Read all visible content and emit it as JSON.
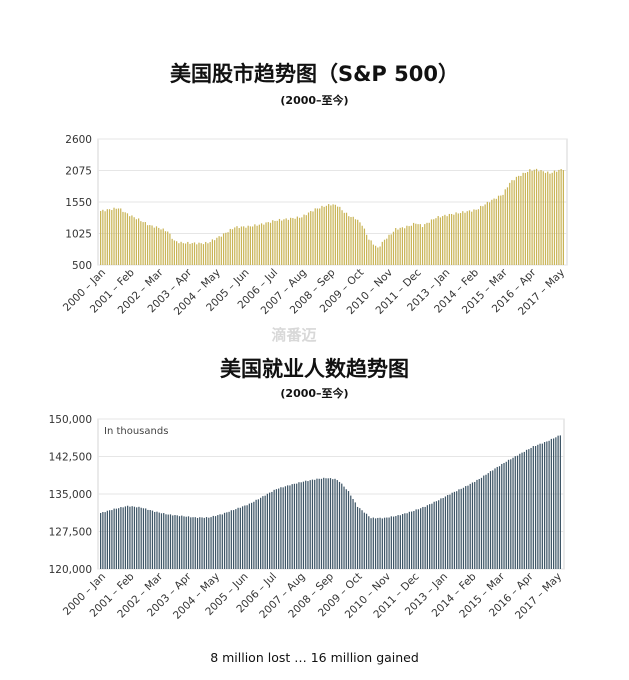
{
  "chart_data": [
    {
      "type": "bar",
      "title": "美国股市趋势图（S&P 500）",
      "subtitle": "(2000–至今)",
      "color": "#c9b456",
      "ylim": [
        500,
        2600
      ],
      "yticks": [
        "2600",
        "2075",
        "1550",
        "1025",
        "500"
      ],
      "ytick_values": [
        2600,
        2075,
        1550,
        1025,
        500
      ],
      "categories": [
        "2000 – Jan",
        "2001 – Feb",
        "2002 – Mar",
        "2003 – Apr",
        "2004 – May",
        "2005 – Jun",
        "2006 – Jul",
        "2007 – Aug",
        "2008 – Sep",
        "2009 – Oct",
        "2010 – Nov",
        "2011 – Dec",
        "2013 – Jan",
        "2014 – Feb",
        "2015 – Mar",
        "2016 – Apr",
        "2017 – May"
      ],
      "keyframes": {
        "x": [
          0,
          3,
          8,
          12,
          18,
          22,
          26,
          30,
          33,
          36,
          45,
          48,
          54,
          60,
          66,
          72,
          78,
          84,
          90,
          93,
          96,
          100,
          103,
          106,
          109,
          112,
          114,
          117,
          120,
          124,
          127,
          130,
          132,
          135,
          138,
          141,
          144,
          150,
          156,
          162,
          168,
          174,
          178,
          180,
          183,
          186,
          190,
          192,
          195,
          198,
          201,
          204,
          207
        ],
        "y": [
          1400,
          1420,
          1450,
          1350,
          1240,
          1160,
          1120,
          1060,
          900,
          870,
          860,
          870,
          990,
          1130,
          1140,
          1180,
          1240,
          1270,
          1300,
          1370,
          1430,
          1480,
          1510,
          1490,
          1380,
          1300,
          1280,
          1170,
          930,
          780,
          920,
          1020,
          1100,
          1120,
          1150,
          1200,
          1150,
          1290,
          1340,
          1380,
          1420,
          1560,
          1640,
          1680,
          1870,
          1960,
          2040,
          2080,
          2090,
          2060,
          2030,
          2070,
          2100
        ]
      }
    },
    {
      "type": "bar",
      "title": "美国就业人数趋势图",
      "subtitle": "(2000–至今)",
      "color": "#3d5566",
      "ylim": [
        120000,
        150000
      ],
      "yticks": [
        "150,000",
        "142,500",
        "135,000",
        "127,500",
        "120,000"
      ],
      "ytick_values": [
        150000,
        142500,
        135000,
        127500,
        120000
      ],
      "unit_note": "In thousands",
      "categories": [
        "2000 – Jan",
        "2001 – Feb",
        "2002 – Mar",
        "2003 – Apr",
        "2004 – May",
        "2005 – Jun",
        "2006 – Jul",
        "2007 – Aug",
        "2008 – Sep",
        "2009 – Oct",
        "2010 – Nov",
        "2011 – Dec",
        "2013 – Jan",
        "2014 – Feb",
        "2015 – Mar",
        "2016 – Apr",
        "2017 – May"
      ],
      "keyframes": {
        "x": [
          0,
          6,
          12,
          18,
          24,
          30,
          36,
          42,
          48,
          54,
          60,
          66,
          72,
          78,
          84,
          90,
          96,
          100,
          104,
          106,
          110,
          114,
          120,
          126,
          132,
          138,
          144,
          150,
          156,
          162,
          168,
          174,
          180,
          186,
          192,
          198,
          204
        ],
        "y": [
          131200,
          132000,
          132600,
          132300,
          131500,
          130900,
          130600,
          130300,
          130300,
          131000,
          132000,
          133000,
          134500,
          136000,
          136800,
          137500,
          138000,
          138200,
          138000,
          137500,
          135500,
          132500,
          130200,
          130200,
          130700,
          131500,
          132500,
          133800,
          135200,
          136500,
          138000,
          139800,
          141500,
          143000,
          144500,
          145500,
          146800
        ]
      }
    }
  ],
  "footnote": "8 million lost … 16 million gained",
  "watermark": "滴番迈"
}
